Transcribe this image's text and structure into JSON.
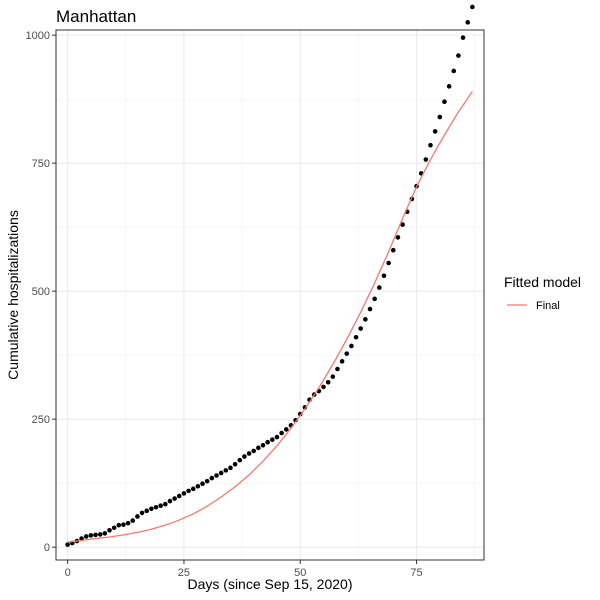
{
  "chart_data": {
    "type": "scatter",
    "title": "Manhattan",
    "xlabel": "Days (since Sep 15, 2020)",
    "ylabel": "Cumulative hospitalizations",
    "xlim": [
      -2.5,
      89.5
    ],
    "ylim": [
      -25,
      1010
    ],
    "x_ticks": [
      0,
      25,
      50,
      75
    ],
    "y_ticks": [
      0,
      250,
      500,
      750,
      1000
    ],
    "grid": true,
    "legend_title": "Fitted model",
    "legend_position": "right",
    "points": {
      "color": "#000000",
      "x": [
        0,
        1,
        2,
        3,
        4,
        5,
        6,
        7,
        8,
        9,
        10,
        11,
        12,
        13,
        14,
        15,
        16,
        17,
        18,
        19,
        20,
        21,
        22,
        23,
        24,
        25,
        26,
        27,
        28,
        29,
        30,
        31,
        32,
        33,
        34,
        35,
        36,
        37,
        38,
        39,
        40,
        41,
        42,
        43,
        44,
        45,
        46,
        47,
        48,
        49,
        50,
        51,
        52,
        53,
        54,
        55,
        56,
        57,
        58,
        59,
        60,
        61,
        62,
        63,
        64,
        65,
        66,
        67,
        68,
        69,
        70,
        71,
        72,
        73,
        74,
        75,
        76,
        77,
        78,
        79,
        80,
        81,
        82,
        83,
        84,
        85,
        86,
        87
      ],
      "y": [
        5,
        8,
        12,
        17,
        21,
        23,
        24,
        25,
        27,
        33,
        38,
        43,
        44,
        47,
        52,
        60,
        67,
        71,
        75,
        78,
        81,
        84,
        90,
        95,
        100,
        105,
        110,
        114,
        119,
        124,
        129,
        135,
        140,
        145,
        150,
        155,
        162,
        170,
        177,
        183,
        188,
        194,
        199,
        205,
        210,
        215,
        223,
        230,
        238,
        248,
        260,
        273,
        288,
        298,
        305,
        313,
        322,
        333,
        348,
        363,
        378,
        393,
        410,
        427,
        445,
        465,
        485,
        507,
        530,
        555,
        580,
        605,
        630,
        655,
        680,
        705,
        730,
        757,
        785,
        812,
        840,
        870,
        900,
        930,
        960,
        995,
        1025,
        1055
      ]
    },
    "series": [
      {
        "name": "Final",
        "color": "#F8766D",
        "x": [
          0,
          3,
          6,
          9,
          12,
          15,
          18,
          21,
          24,
          27,
          30,
          33,
          36,
          39,
          42,
          45,
          48,
          51,
          54,
          57,
          60,
          63,
          66,
          69,
          72,
          75,
          78,
          81,
          84,
          87
        ],
        "y": [
          10,
          13,
          17,
          20,
          24,
          29,
          35,
          43,
          53,
          65,
          80,
          98,
          118,
          141,
          168,
          198,
          232,
          270,
          311,
          357,
          406,
          459,
          516,
          577,
          642,
          704,
          757,
          805,
          850,
          890
        ]
      }
    ]
  }
}
